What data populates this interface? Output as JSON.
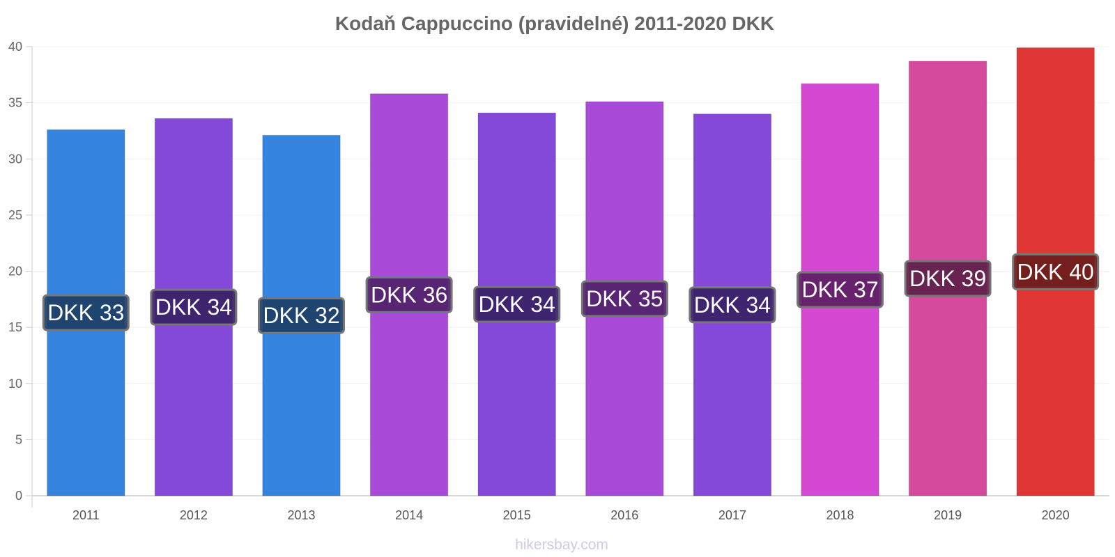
{
  "chart_data": {
    "type": "bar",
    "title": "Kodaň Cappuccino (pravidelné) 2011-2020 DKK",
    "categories": [
      "2011",
      "2012",
      "2013",
      "2014",
      "2015",
      "2016",
      "2017",
      "2018",
      "2019",
      "2020"
    ],
    "values": [
      32.6,
      33.6,
      32.1,
      35.8,
      34.1,
      35.1,
      34.0,
      36.7,
      38.7,
      39.9
    ],
    "data_labels": [
      "DKK 33",
      "DKK 34",
      "DKK 32",
      "DKK 36",
      "DKK 34",
      "DKK 35",
      "DKK 34",
      "DKK 37",
      "DKK 39",
      "DKK 40"
    ],
    "bar_colors": [
      "#3584e0",
      "#8449d8",
      "#3584e0",
      "#a94ad9",
      "#8449d8",
      "#a94ad9",
      "#8449d8",
      "#d448d4",
      "#d64a9e",
      "#e03636"
    ],
    "label_box_colors": [
      "#1e3f66",
      "#3a2266",
      "#1e3f66",
      "#50226a",
      "#3a2266",
      "#50226a",
      "#3a2266",
      "#5e2064",
      "#5e204a",
      "#6a1c1c"
    ],
    "ylim": [
      0,
      40
    ],
    "yticks": [
      "0",
      "5",
      "10",
      "15",
      "20",
      "25",
      "30",
      "35",
      "40"
    ],
    "grid": true,
    "xlabel": "",
    "ylabel": ""
  },
  "watermark": "hikersbay.com"
}
